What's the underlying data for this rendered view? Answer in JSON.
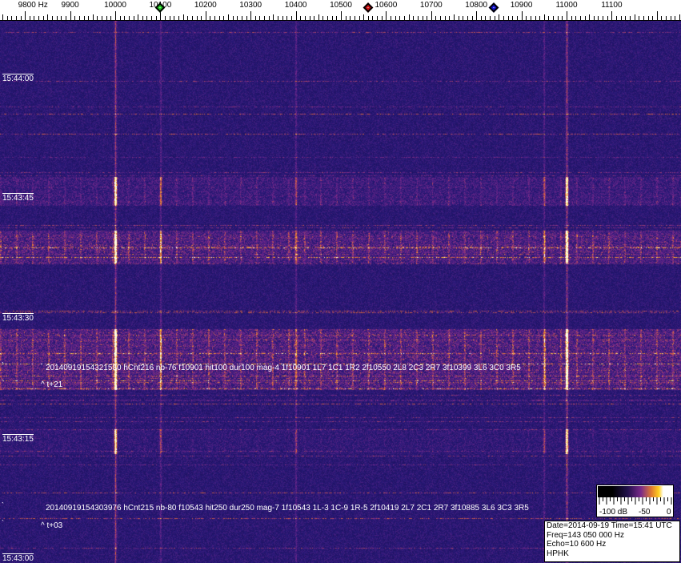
{
  "frequency_axis": {
    "labels": [
      "9800 Hz",
      "9900",
      "10000",
      "10100",
      "10200",
      "10300",
      "10400",
      "10500",
      "10600",
      "10700",
      "10800",
      "10900",
      "11000",
      "11100"
    ],
    "values": [
      9800,
      9900,
      10000,
      10100,
      10200,
      10300,
      10400,
      10500,
      10600,
      10700,
      10800,
      10900,
      11000,
      11100
    ]
  },
  "markers": [
    {
      "name": "green-marker",
      "freq": 10100,
      "color": "#22cc22"
    },
    {
      "name": "red-marker",
      "freq": 10560,
      "color": "#cc1111"
    },
    {
      "name": "blue-marker",
      "freq": 10838,
      "color": "#1111cc"
    }
  ],
  "time_labels": [
    "15:44:00",
    "15:43:45",
    "15:43:30",
    "15:43:15",
    "15:43:00"
  ],
  "detections": [
    {
      "text": "20140919154321580 hCnt216 nb-76 f10901 hit100 dur100 mag-4 1f10901 1L7 1C1 1R2 2f10550 2L8 2C3 2R7 3f10399 3L6 3C0 3R5",
      "offset": "^ t+21"
    },
    {
      "text": "20140919154303976 hCnt215 nb-80 f10543 hit250 dur250 mag-7 1f10543 1L-3 1C-9 1R-5 2f10419 2L7 2C1 2R7 3f10885 3L6 3C3 3R5",
      "offset": "^ t+03"
    }
  ],
  "colorbar": {
    "labels": [
      "-100 dB",
      "-50",
      "0"
    ]
  },
  "info": {
    "line1": "Date=2014-09-19 Time=15:41 UTC",
    "line2": "Freq=143 050 000 Hz",
    "line3": "Echo=10 600 Hz",
    "line4": "HPHK"
  },
  "colors": {
    "background": "#2a1a78",
    "signal": "#ffb020"
  }
}
